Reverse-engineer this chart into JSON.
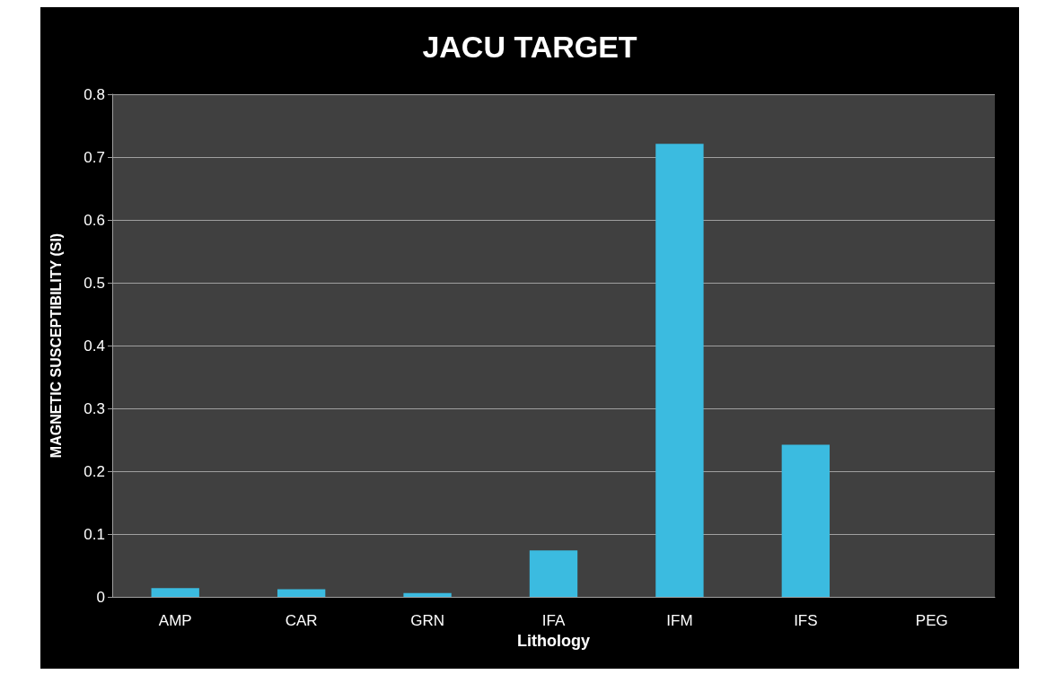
{
  "chart_data": {
    "type": "bar",
    "title": "JACU TARGET",
    "xlabel": "Lithology",
    "ylabel": "MAGNETIC SUSCEPTIBILITY (SI)",
    "categories": [
      "AMP",
      "CAR",
      "GRN",
      "IFA",
      "IFM",
      "IFS",
      "PEG"
    ],
    "values": [
      0.014,
      0.012,
      0.006,
      0.074,
      0.721,
      0.242,
      0
    ],
    "color": "#3bbbe0",
    "ylim": [
      0,
      0.8
    ],
    "yticks": [
      0,
      0.1,
      0.2,
      0.3,
      0.4,
      0.5,
      0.6,
      0.7,
      0.8
    ],
    "grid": true
  }
}
